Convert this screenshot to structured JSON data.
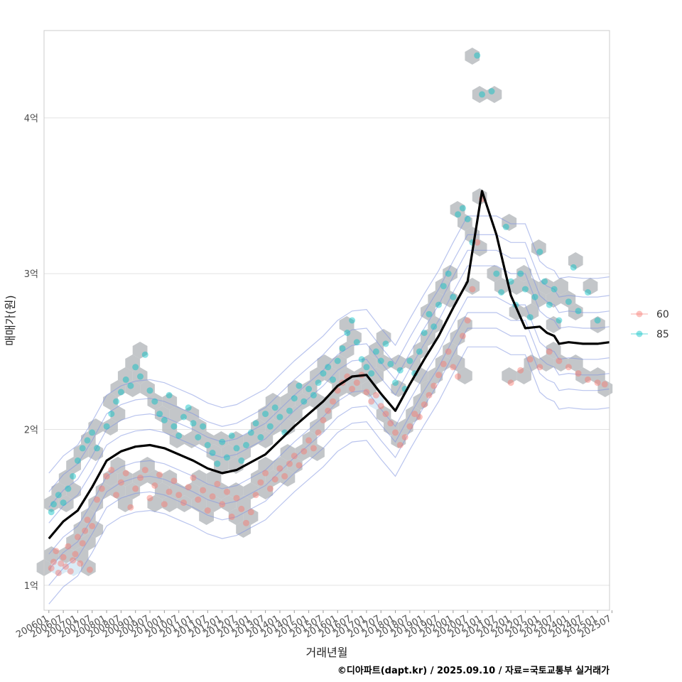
{
  "chart_data": {
    "type": "scatter",
    "title": "",
    "xlabel": "거래년월",
    "ylabel": "매매가(원)",
    "caption": "©디아파트(dapt.kr) / 2025.09.10 / 자료=국토교통부 실거래가",
    "x_tick_labels": [
      "200601",
      "200607",
      "200701",
      "200707",
      "200801",
      "200807",
      "200901",
      "200907",
      "201001",
      "201007",
      "201101",
      "201107",
      "201201",
      "201207",
      "201301",
      "201307",
      "201401",
      "201407",
      "201501",
      "201507",
      "201601",
      "201607",
      "201701",
      "201707",
      "201801",
      "201807",
      "201901",
      "201907",
      "202001",
      "202007",
      "202101",
      "202107",
      "202201",
      "202207",
      "202301",
      "202307",
      "202401",
      "202407",
      "202501",
      "202507"
    ],
    "x_range_months": [
      -2,
      233
    ],
    "y_ticks": [
      {
        "value": 1.0,
        "label": "1억"
      },
      {
        "value": 2.0,
        "label": "2억"
      },
      {
        "value": 3.0,
        "label": "3억"
      },
      {
        "value": 4.0,
        "label": "4억"
      }
    ],
    "y_range": [
      0.84,
      4.56
    ],
    "legend": {
      "position": "right",
      "entries": [
        {
          "name": "60",
          "color": "#F8766D"
        },
        {
          "name": "85",
          "color": "#00BFC4"
        }
      ]
    },
    "colors": {
      "hex": "#b8bcc0",
      "hex_light": "#d4e8f4",
      "contour": "#7f94e0",
      "trend": "#000000",
      "grid": "#e3e3e3",
      "frame": "#cccccc"
    },
    "trend_line": {
      "name": "median",
      "months": [
        0,
        6,
        12,
        18,
        24,
        30,
        36,
        42,
        48,
        54,
        60,
        66,
        72,
        78,
        84,
        90,
        96,
        102,
        108,
        114,
        120,
        126,
        132,
        138,
        144,
        150,
        156,
        162,
        168,
        174,
        180,
        186,
        192,
        198,
        204,
        207,
        210,
        212,
        216,
        222,
        228,
        233
      ],
      "values": [
        1.3,
        1.41,
        1.48,
        1.63,
        1.8,
        1.86,
        1.89,
        1.9,
        1.88,
        1.84,
        1.8,
        1.75,
        1.72,
        1.74,
        1.79,
        1.84,
        1.93,
        2.02,
        2.1,
        2.18,
        2.28,
        2.34,
        2.35,
        2.23,
        2.12,
        2.29,
        2.45,
        2.6,
        2.78,
        2.95,
        3.53,
        3.25,
        2.86,
        2.65,
        2.66,
        2.62,
        2.6,
        2.55,
        2.56,
        2.55,
        2.55,
        2.56
      ]
    },
    "series": [
      {
        "name": "60",
        "points": [
          [
            1,
            1.11
          ],
          [
            2,
            1.15
          ],
          [
            3,
            1.22
          ],
          [
            4,
            1.08
          ],
          [
            5,
            1.14
          ],
          [
            6,
            1.18
          ],
          [
            7,
            1.12
          ],
          [
            8,
            1.25
          ],
          [
            9,
            1.09
          ],
          [
            10,
            1.16
          ],
          [
            11,
            1.2
          ],
          [
            12,
            1.31
          ],
          [
            13,
            1.14
          ],
          [
            14,
            1.27
          ],
          [
            15,
            1.35
          ],
          [
            16,
            1.42
          ],
          [
            17,
            1.1
          ],
          [
            18,
            1.38
          ],
          [
            20,
            1.55
          ],
          [
            22,
            1.62
          ],
          [
            24,
            1.7
          ],
          [
            26,
            1.74
          ],
          [
            28,
            1.58
          ],
          [
            30,
            1.66
          ],
          [
            32,
            1.72
          ],
          [
            34,
            1.5
          ],
          [
            36,
            1.62
          ],
          [
            38,
            1.69
          ],
          [
            40,
            1.74
          ],
          [
            42,
            1.56
          ],
          [
            44,
            1.64
          ],
          [
            46,
            1.71
          ],
          [
            48,
            1.52
          ],
          [
            50,
            1.6
          ],
          [
            52,
            1.67
          ],
          [
            54,
            1.58
          ],
          [
            56,
            1.53
          ],
          [
            58,
            1.63
          ],
          [
            60,
            1.69
          ],
          [
            62,
            1.55
          ],
          [
            64,
            1.61
          ],
          [
            66,
            1.48
          ],
          [
            68,
            1.57
          ],
          [
            70,
            1.65
          ],
          [
            72,
            1.52
          ],
          [
            74,
            1.6
          ],
          [
            76,
            1.44
          ],
          [
            78,
            1.56
          ],
          [
            80,
            1.49
          ],
          [
            82,
            1.4
          ],
          [
            84,
            1.47
          ],
          [
            86,
            1.58
          ],
          [
            88,
            1.66
          ],
          [
            90,
            1.72
          ],
          [
            92,
            1.62
          ],
          [
            94,
            1.68
          ],
          [
            96,
            1.75
          ],
          [
            98,
            1.7
          ],
          [
            100,
            1.78
          ],
          [
            102,
            1.83
          ],
          [
            104,
            1.77
          ],
          [
            106,
            1.86
          ],
          [
            108,
            1.93
          ],
          [
            110,
            1.88
          ],
          [
            112,
            1.98
          ],
          [
            114,
            2.06
          ],
          [
            116,
            2.12
          ],
          [
            118,
            2.18
          ],
          [
            120,
            2.25
          ],
          [
            122,
            2.3
          ],
          [
            124,
            2.34
          ],
          [
            126,
            2.26
          ],
          [
            128,
            2.3
          ],
          [
            130,
            2.35
          ],
          [
            132,
            2.24
          ],
          [
            134,
            2.18
          ],
          [
            136,
            2.22
          ],
          [
            138,
            2.15
          ],
          [
            140,
            2.1
          ],
          [
            142,
            2.04
          ],
          [
            144,
            1.98
          ],
          [
            146,
            1.9
          ],
          [
            148,
            1.95
          ],
          [
            150,
            2.02
          ],
          [
            152,
            2.1
          ],
          [
            154,
            2.08
          ],
          [
            156,
            2.16
          ],
          [
            158,
            2.22
          ],
          [
            160,
            2.28
          ],
          [
            162,
            2.35
          ],
          [
            164,
            2.42
          ],
          [
            166,
            2.5
          ],
          [
            168,
            2.4
          ],
          [
            170,
            2.34
          ],
          [
            172,
            2.6
          ],
          [
            174,
            2.7
          ],
          [
            176,
            2.9
          ],
          [
            178,
            3.2
          ],
          [
            180,
            3.48
          ],
          [
            192,
            2.3
          ],
          [
            196,
            2.38
          ],
          [
            200,
            2.45
          ],
          [
            204,
            2.4
          ],
          [
            208,
            2.5
          ],
          [
            212,
            2.44
          ],
          [
            216,
            2.4
          ],
          [
            220,
            2.36
          ],
          [
            224,
            2.32
          ],
          [
            228,
            2.3
          ],
          [
            231,
            2.29
          ]
        ]
      },
      {
        "name": "85",
        "points": [
          [
            1,
            1.47
          ],
          [
            2,
            1.52
          ],
          [
            4,
            1.58
          ],
          [
            6,
            1.53
          ],
          [
            8,
            1.62
          ],
          [
            10,
            1.7
          ],
          [
            12,
            1.8
          ],
          [
            14,
            1.88
          ],
          [
            16,
            1.93
          ],
          [
            18,
            1.98
          ],
          [
            20,
            1.88
          ],
          [
            24,
            2.02
          ],
          [
            26,
            2.1
          ],
          [
            28,
            2.18
          ],
          [
            30,
            2.24
          ],
          [
            32,
            2.32
          ],
          [
            34,
            2.28
          ],
          [
            36,
            2.4
          ],
          [
            38,
            2.34
          ],
          [
            40,
            2.48
          ],
          [
            42,
            2.25
          ],
          [
            44,
            2.18
          ],
          [
            46,
            2.1
          ],
          [
            48,
            2.06
          ],
          [
            50,
            2.22
          ],
          [
            52,
            2.02
          ],
          [
            54,
            1.96
          ],
          [
            56,
            2.08
          ],
          [
            58,
            2.14
          ],
          [
            60,
            2.04
          ],
          [
            62,
            1.95
          ],
          [
            64,
            2.02
          ],
          [
            66,
            1.9
          ],
          [
            68,
            1.85
          ],
          [
            70,
            1.78
          ],
          [
            72,
            1.92
          ],
          [
            74,
            1.82
          ],
          [
            76,
            1.96
          ],
          [
            78,
            1.88
          ],
          [
            80,
            1.8
          ],
          [
            82,
            1.9
          ],
          [
            84,
            1.98
          ],
          [
            86,
            2.04
          ],
          [
            88,
            1.95
          ],
          [
            90,
            2.1
          ],
          [
            92,
            2.02
          ],
          [
            94,
            2.14
          ],
          [
            96,
            2.08
          ],
          [
            98,
            1.98
          ],
          [
            100,
            2.12
          ],
          [
            102,
            2.2
          ],
          [
            104,
            2.28
          ],
          [
            106,
            2.18
          ],
          [
            108,
            2.26
          ],
          [
            110,
            2.22
          ],
          [
            112,
            2.3
          ],
          [
            114,
            2.36
          ],
          [
            116,
            2.4
          ],
          [
            118,
            2.32
          ],
          [
            120,
            2.44
          ],
          [
            122,
            2.52
          ],
          [
            124,
            2.62
          ],
          [
            126,
            2.7
          ],
          [
            128,
            2.56
          ],
          [
            130,
            2.45
          ],
          [
            132,
            2.4
          ],
          [
            134,
            2.36
          ],
          [
            136,
            2.5
          ],
          [
            138,
            2.44
          ],
          [
            140,
            2.55
          ],
          [
            142,
            2.42
          ],
          [
            144,
            2.3
          ],
          [
            146,
            2.38
          ],
          [
            148,
            2.26
          ],
          [
            150,
            2.44
          ],
          [
            152,
            2.36
          ],
          [
            154,
            2.5
          ],
          [
            156,
            2.62
          ],
          [
            158,
            2.74
          ],
          [
            160,
            2.66
          ],
          [
            162,
            2.8
          ],
          [
            164,
            2.92
          ],
          [
            166,
            3.0
          ],
          [
            168,
            2.85
          ],
          [
            170,
            3.38
          ],
          [
            172,
            3.42
          ],
          [
            174,
            3.35
          ],
          [
            176,
            3.2
          ],
          [
            178,
            4.4
          ],
          [
            180,
            4.15
          ],
          [
            184,
            4.17
          ],
          [
            186,
            3.0
          ],
          [
            188,
            2.88
          ],
          [
            190,
            3.3
          ],
          [
            192,
            2.95
          ],
          [
            194,
            2.8
          ],
          [
            196,
            3.0
          ],
          [
            198,
            2.9
          ],
          [
            200,
            2.72
          ],
          [
            202,
            2.85
          ],
          [
            204,
            3.14
          ],
          [
            206,
            2.95
          ],
          [
            208,
            2.8
          ],
          [
            210,
            2.9
          ],
          [
            212,
            2.7
          ],
          [
            216,
            2.82
          ],
          [
            218,
            3.04
          ],
          [
            220,
            2.76
          ],
          [
            224,
            2.88
          ],
          [
            228,
            2.7
          ]
        ]
      }
    ]
  }
}
